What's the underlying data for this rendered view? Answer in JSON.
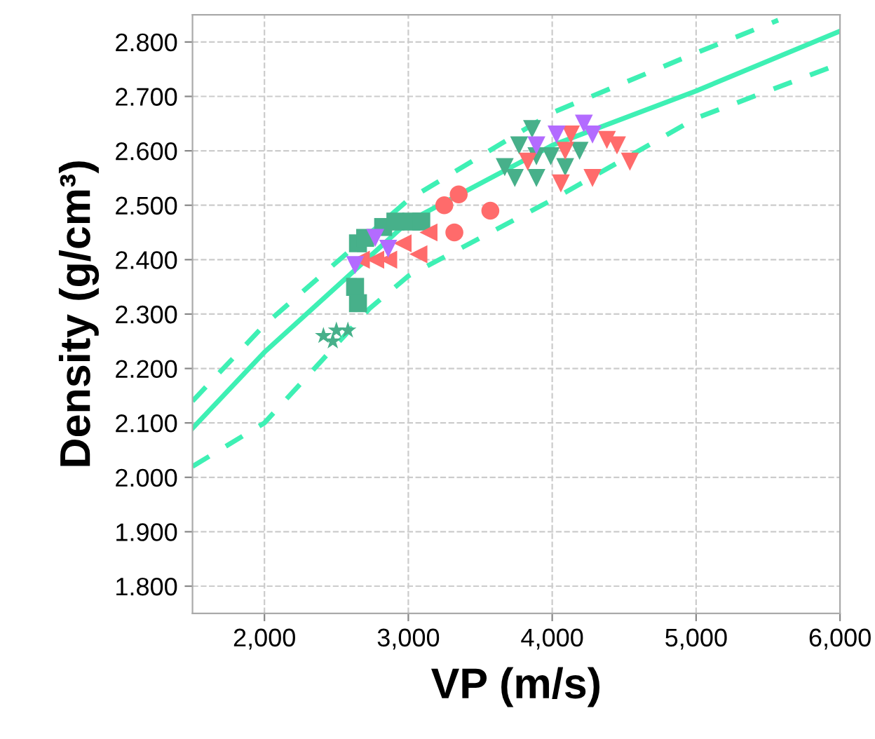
{
  "chart_data": {
    "type": "scatter",
    "xlabel": "VP (m/s)",
    "ylabel": "Density (g/cm³)",
    "xlim": [
      1500,
      6000
    ],
    "ylim": [
      1.75,
      2.85
    ],
    "xticks": [
      {
        "value": 2000,
        "label": "2,000"
      },
      {
        "value": 3000,
        "label": "3,000"
      },
      {
        "value": 4000,
        "label": "4,000"
      },
      {
        "value": 5000,
        "label": "5,000"
      },
      {
        "value": 6000,
        "label": "6,000"
      }
    ],
    "yticks": [
      {
        "value": 1.8,
        "label": "1.800"
      },
      {
        "value": 1.9,
        "label": "1.900"
      },
      {
        "value": 2.0,
        "label": "2.000"
      },
      {
        "value": 2.1,
        "label": "2.100"
      },
      {
        "value": 2.2,
        "label": "2.200"
      },
      {
        "value": 2.3,
        "label": "2.300"
      },
      {
        "value": 2.4,
        "label": "2.400"
      },
      {
        "value": 2.5,
        "label": "2.500"
      },
      {
        "value": 2.6,
        "label": "2.600"
      },
      {
        "value": 2.7,
        "label": "2.700"
      },
      {
        "value": 2.8,
        "label": "2.800"
      }
    ],
    "grid": true,
    "series": [
      {
        "type": "line",
        "color": "#3ef0b4",
        "line_style": "solid",
        "marker": "none",
        "x": [
          1500,
          2000,
          3000,
          4000,
          5000,
          6000
        ],
        "values": [
          2.09,
          2.23,
          2.47,
          2.61,
          2.71,
          2.82
        ]
      },
      {
        "type": "line",
        "color": "#3ef0b4",
        "line_style": "dashed",
        "marker": "none",
        "x": [
          1500,
          2000,
          3000,
          4000,
          5000,
          5570
        ],
        "values": [
          2.14,
          2.28,
          2.51,
          2.67,
          2.78,
          2.84
        ]
      },
      {
        "type": "line",
        "color": "#3ef0b4",
        "line_style": "dashed",
        "marker": "none",
        "x": [
          1500,
          2000,
          2730,
          3000,
          4000,
          5000,
          6000
        ],
        "values": [
          2.02,
          2.1,
          2.31,
          2.37,
          2.51,
          2.66,
          2.76
        ]
      },
      {
        "color": "#47b08a",
        "marker": "square",
        "x": [
          2650,
          2700,
          2825,
          2910,
          3020,
          3090,
          2630,
          2650
        ],
        "values": [
          2.43,
          2.44,
          2.46,
          2.47,
          2.47,
          2.47,
          2.35,
          2.32
        ]
      },
      {
        "color": "#47b08a",
        "marker": "star",
        "x": [
          2410,
          2500,
          2580,
          2475
        ],
        "values": [
          2.26,
          2.27,
          2.27,
          2.25
        ]
      },
      {
        "color": "#47b08a",
        "marker": "triangle_down",
        "x": [
          3860,
          3770,
          3670,
          3740,
          3890,
          3990,
          4090,
          4190,
          3890
        ],
        "values": [
          2.64,
          2.61,
          2.57,
          2.55,
          2.55,
          2.59,
          2.57,
          2.6,
          2.59
        ]
      },
      {
        "color": "#ff6b6b",
        "marker": "circle",
        "x": [
          3350,
          3250,
          3570,
          3320
        ],
        "values": [
          2.52,
          2.5,
          2.49,
          2.45
        ]
      },
      {
        "color": "#ff6b6b",
        "marker": "triangle_left",
        "x": [
          2670,
          2770,
          2860,
          2960,
          3070,
          3140
        ],
        "values": [
          2.4,
          2.4,
          2.4,
          2.43,
          2.41,
          2.45
        ]
      },
      {
        "color": "#ff6b6b",
        "marker": "triangle_down",
        "x": [
          4130,
          4380,
          4450,
          4540,
          4280,
          4060,
          4090,
          3830
        ],
        "values": [
          2.63,
          2.62,
          2.61,
          2.58,
          2.55,
          2.54,
          2.6,
          2.58
        ]
      },
      {
        "color": "#b36bff",
        "marker": "triangle_down",
        "x": [
          4030,
          4220,
          3890,
          4280,
          2770,
          2630,
          2860
        ],
        "values": [
          2.63,
          2.65,
          2.61,
          2.63,
          2.44,
          2.39,
          2.42
        ]
      }
    ]
  }
}
